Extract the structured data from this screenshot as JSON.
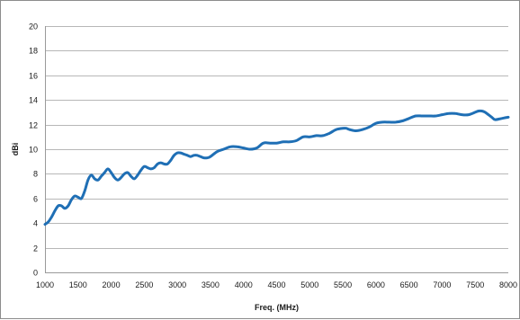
{
  "chart_data": {
    "type": "line",
    "title": "",
    "xlabel": "Freq. (MHz)",
    "ylabel": "dBi",
    "xlim": [
      1000,
      8000
    ],
    "ylim": [
      0,
      20
    ],
    "xticks": [
      1000,
      1500,
      2000,
      2500,
      3000,
      3500,
      4000,
      4500,
      5000,
      5500,
      6000,
      6500,
      7000,
      7500,
      8000
    ],
    "yticks": [
      0,
      2,
      4,
      6,
      8,
      10,
      12,
      14,
      16,
      18,
      20
    ],
    "grid": "horizontal",
    "legend": "none",
    "series_color": "#1f6fb5",
    "series": [
      {
        "x": [
          1000,
          1050,
          1100,
          1150,
          1200,
          1250,
          1300,
          1350,
          1400,
          1450,
          1500,
          1550,
          1600,
          1650,
          1700,
          1750,
          1800,
          1850,
          1900,
          1950,
          2000,
          2050,
          2100,
          2150,
          2200,
          2250,
          2300,
          2350,
          2400,
          2450,
          2500,
          2550,
          2600,
          2650,
          2700,
          2750,
          2800,
          2850,
          2900,
          2950,
          3000,
          3050,
          3100,
          3150,
          3200,
          3250,
          3300,
          3350,
          3400,
          3450,
          3500,
          3600,
          3700,
          3800,
          3900,
          4000,
          4100,
          4200,
          4300,
          4400,
          4500,
          4600,
          4700,
          4800,
          4900,
          5000,
          5100,
          5200,
          5300,
          5400,
          5500,
          5550,
          5600,
          5700,
          5800,
          5900,
          6000,
          6100,
          6200,
          6300,
          6400,
          6500,
          6600,
          6700,
          6800,
          6900,
          7000,
          7100,
          7200,
          7300,
          7400,
          7500,
          7550,
          7600,
          7650,
          7700,
          7750,
          7800,
          7900,
          8000
        ],
        "y": [
          3.9,
          4.1,
          4.5,
          5.0,
          5.4,
          5.4,
          5.2,
          5.4,
          5.9,
          6.2,
          6.1,
          6.0,
          6.6,
          7.5,
          7.9,
          7.6,
          7.5,
          7.8,
          8.1,
          8.4,
          8.1,
          7.7,
          7.5,
          7.7,
          8.0,
          8.1,
          7.8,
          7.6,
          7.9,
          8.3,
          8.6,
          8.5,
          8.4,
          8.5,
          8.8,
          8.9,
          8.8,
          8.8,
          9.1,
          9.5,
          9.7,
          9.7,
          9.6,
          9.5,
          9.4,
          9.5,
          9.5,
          9.4,
          9.3,
          9.3,
          9.4,
          9.8,
          10.0,
          10.2,
          10.2,
          10.1,
          10.0,
          10.1,
          10.5,
          10.5,
          10.5,
          10.6,
          10.6,
          10.7,
          11.0,
          11.0,
          11.1,
          11.1,
          11.3,
          11.6,
          11.7,
          11.7,
          11.6,
          11.5,
          11.6,
          11.8,
          12.1,
          12.2,
          12.2,
          12.2,
          12.3,
          12.5,
          12.7,
          12.7,
          12.7,
          12.7,
          12.8,
          12.9,
          12.9,
          12.8,
          12.8,
          13.0,
          13.1,
          13.1,
          13.0,
          12.8,
          12.6,
          12.4,
          12.5,
          12.6
        ]
      }
    ]
  }
}
